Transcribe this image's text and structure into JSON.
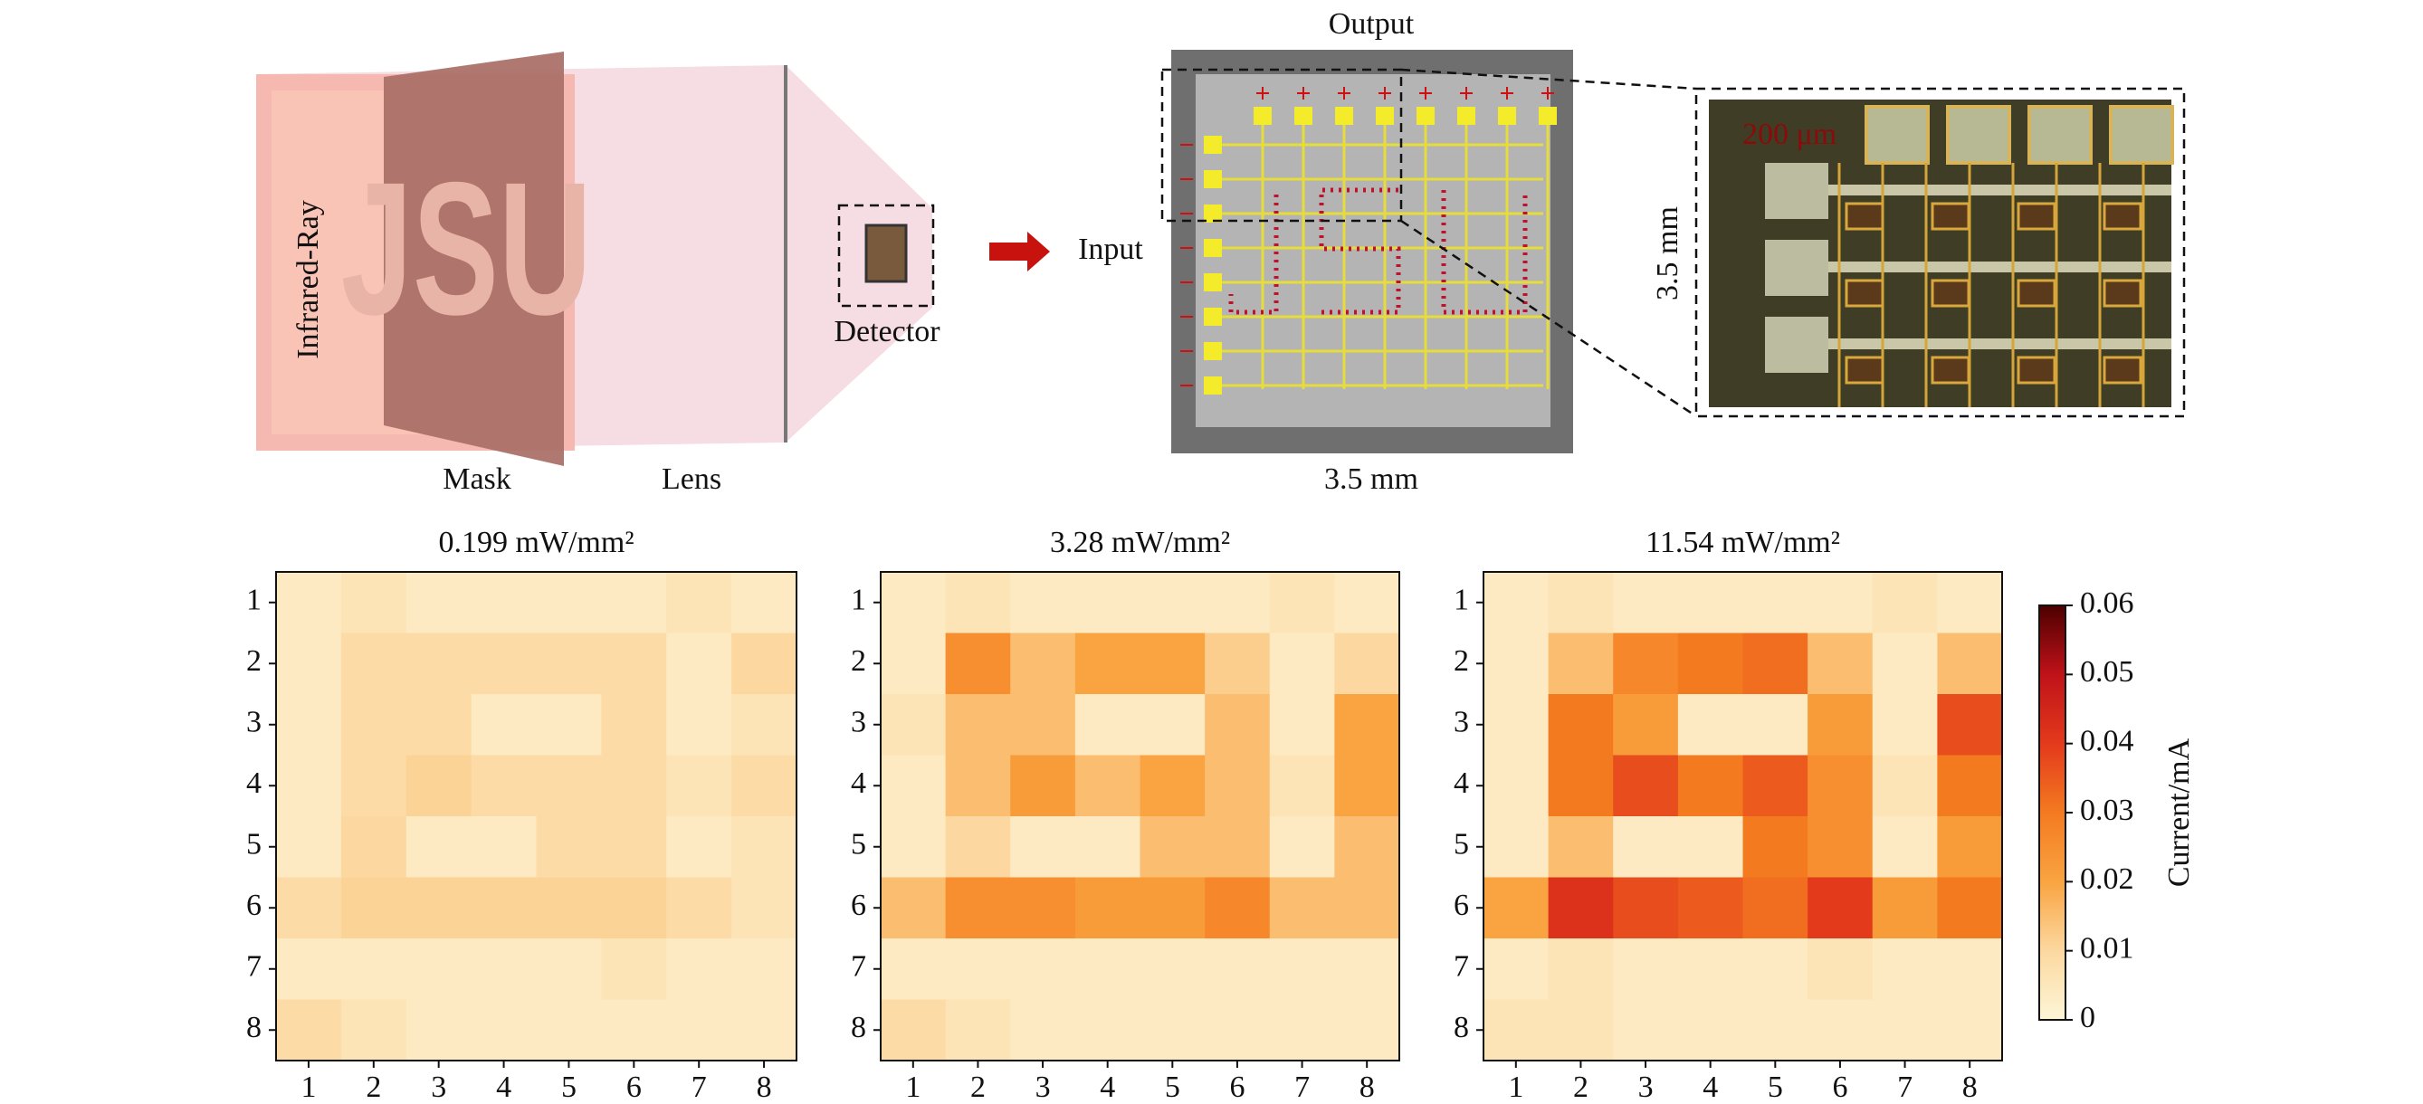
{
  "diagram": {
    "source": "Infrared-Ray",
    "mask_text": "JSU",
    "mask": "Mask",
    "lens": "Lens",
    "detector": "Detector",
    "input": "Input",
    "output": "Output",
    "chip_width": "3.5 mm",
    "zoom_height": "3.5 mm",
    "scale_bar": "200 μm"
  },
  "chart_data": [
    {
      "type": "heatmap",
      "title": "0.199 mW/mm²",
      "x": [
        1,
        2,
        3,
        4,
        5,
        6,
        7,
        8
      ],
      "y": [
        1,
        2,
        3,
        4,
        5,
        6,
        7,
        8
      ],
      "zlim": [
        0,
        0.06
      ],
      "colors": [
        "#fdf6d8",
        "#fcd8a0",
        "#f9a441",
        "#f47a20",
        "#e33a1c",
        "#bf1219",
        "#4d0000"
      ],
      "z": [
        [
          0.004,
          0.006,
          0.004,
          0.004,
          0.004,
          0.004,
          0.006,
          0.004
        ],
        [
          0.004,
          0.009,
          0.009,
          0.009,
          0.009,
          0.009,
          0.004,
          0.01
        ],
        [
          0.004,
          0.009,
          0.009,
          0.004,
          0.004,
          0.009,
          0.004,
          0.006
        ],
        [
          0.004,
          0.009,
          0.011,
          0.009,
          0.009,
          0.009,
          0.006,
          0.009
        ],
        [
          0.004,
          0.01,
          0.004,
          0.004,
          0.009,
          0.009,
          0.004,
          0.006
        ],
        [
          0.009,
          0.011,
          0.011,
          0.011,
          0.011,
          0.011,
          0.009,
          0.006
        ],
        [
          0.004,
          0.004,
          0.004,
          0.004,
          0.004,
          0.006,
          0.004,
          0.004
        ],
        [
          0.009,
          0.006,
          0.004,
          0.004,
          0.004,
          0.004,
          0.004,
          0.004
        ]
      ]
    },
    {
      "type": "heatmap",
      "title": "3.28 mW/mm²",
      "x": [
        1,
        2,
        3,
        4,
        5,
        6,
        7,
        8
      ],
      "y": [
        1,
        2,
        3,
        4,
        5,
        6,
        7,
        8
      ],
      "zlim": [
        0,
        0.06
      ],
      "colors": [
        "#fdf6d8",
        "#fcd8a0",
        "#f9a441",
        "#f47a20",
        "#e33a1c",
        "#bf1219",
        "#4d0000"
      ],
      "z": [
        [
          0.004,
          0.006,
          0.004,
          0.004,
          0.004,
          0.004,
          0.006,
          0.004
        ],
        [
          0.004,
          0.025,
          0.015,
          0.02,
          0.02,
          0.012,
          0.004,
          0.01
        ],
        [
          0.006,
          0.015,
          0.015,
          0.004,
          0.004,
          0.015,
          0.004,
          0.02
        ],
        [
          0.004,
          0.015,
          0.022,
          0.015,
          0.02,
          0.015,
          0.006,
          0.02
        ],
        [
          0.004,
          0.01,
          0.004,
          0.004,
          0.015,
          0.015,
          0.004,
          0.015
        ],
        [
          0.015,
          0.025,
          0.025,
          0.022,
          0.022,
          0.027,
          0.015,
          0.015
        ],
        [
          0.004,
          0.004,
          0.004,
          0.004,
          0.004,
          0.004,
          0.004,
          0.004
        ],
        [
          0.009,
          0.006,
          0.004,
          0.004,
          0.004,
          0.004,
          0.004,
          0.004
        ]
      ]
    },
    {
      "type": "heatmap",
      "title": "11.54 mW/mm²",
      "x": [
        1,
        2,
        3,
        4,
        5,
        6,
        7,
        8
      ],
      "y": [
        1,
        2,
        3,
        4,
        5,
        6,
        7,
        8
      ],
      "zlim": [
        0,
        0.06
      ],
      "colors": [
        "#fdf6d8",
        "#fcd8a0",
        "#f9a441",
        "#f47a20",
        "#e33a1c",
        "#bf1219",
        "#4d0000"
      ],
      "z": [
        [
          0.004,
          0.006,
          0.004,
          0.004,
          0.004,
          0.004,
          0.006,
          0.004
        ],
        [
          0.004,
          0.015,
          0.027,
          0.03,
          0.032,
          0.015,
          0.004,
          0.015
        ],
        [
          0.004,
          0.03,
          0.022,
          0.004,
          0.004,
          0.022,
          0.004,
          0.037
        ],
        [
          0.004,
          0.03,
          0.037,
          0.03,
          0.035,
          0.025,
          0.006,
          0.03
        ],
        [
          0.004,
          0.015,
          0.004,
          0.004,
          0.03,
          0.025,
          0.004,
          0.022
        ],
        [
          0.02,
          0.042,
          0.037,
          0.035,
          0.032,
          0.04,
          0.022,
          0.03
        ],
        [
          0.004,
          0.006,
          0.004,
          0.004,
          0.004,
          0.006,
          0.004,
          0.004
        ],
        [
          0.006,
          0.006,
          0.004,
          0.004,
          0.004,
          0.004,
          0.004,
          0.004
        ]
      ],
      "colorbar": {
        "label": "Current/mA",
        "ticks": [
          0,
          0.01,
          0.02,
          0.03,
          0.04,
          0.05,
          0.06
        ]
      }
    }
  ]
}
